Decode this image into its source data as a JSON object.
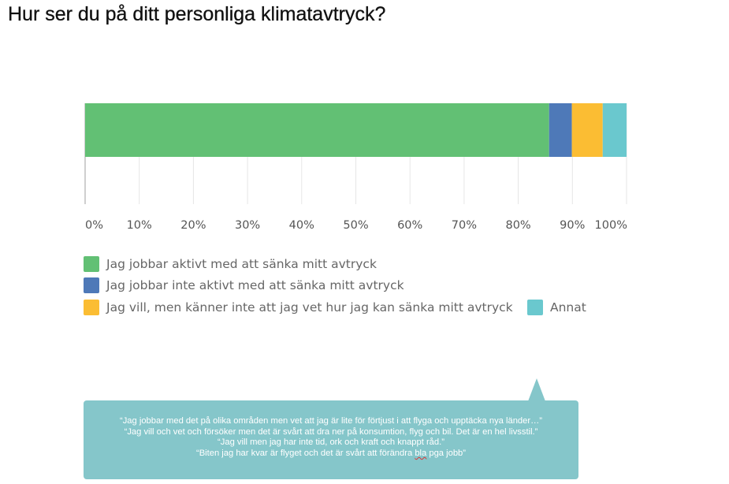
{
  "title": "Hur ser du på ditt personliga klimatavtryck?",
  "chart_data": {
    "type": "bar",
    "orientation": "horizontal",
    "stacked": true,
    "categories": [
      ""
    ],
    "series": [
      {
        "name": "Jag jobbar aktivt med att sänka mitt avtryck",
        "values": [
          85.7
        ],
        "color": "#62c074"
      },
      {
        "name": "Jag jobbar inte aktivt med att sänka mitt avtryck",
        "values": [
          4.2
        ],
        "color": "#4e79b8"
      },
      {
        "name": "Jag vill, men känner inte att jag vet hur jag kan sänka mitt avtryck",
        "values": [
          5.7
        ],
        "color": "#fbbd33"
      },
      {
        "name": "Annat",
        "values": [
          4.4
        ],
        "color": "#6ac8ce"
      }
    ],
    "xlim": [
      0,
      100
    ],
    "xticks": [
      "0%",
      "10%",
      "20%",
      "30%",
      "40%",
      "50%",
      "60%",
      "70%",
      "80%",
      "90%",
      "100%"
    ],
    "grid": true,
    "legend_position": "bottom"
  },
  "callout": {
    "quotes": [
      "“Jag jobbar med det på olika områden men vet att jag är lite för förtjust i att flyga och upptäcka nya länder…”",
      "“Jag vill och vet och försöker men det är svårt att dra ner på konsumtion, flyg och bil. Det är en hel livsstil.”",
      "“Jag vill men jag har inte tid, ork och kraft och knappt råd.”"
    ],
    "last_quote_before": "“Biten jag har kvar är flyget och det är svårt att förändra ",
    "last_quote_marked": "bla",
    "last_quote_after": " pga jobb”",
    "color": "#85c6ca"
  }
}
